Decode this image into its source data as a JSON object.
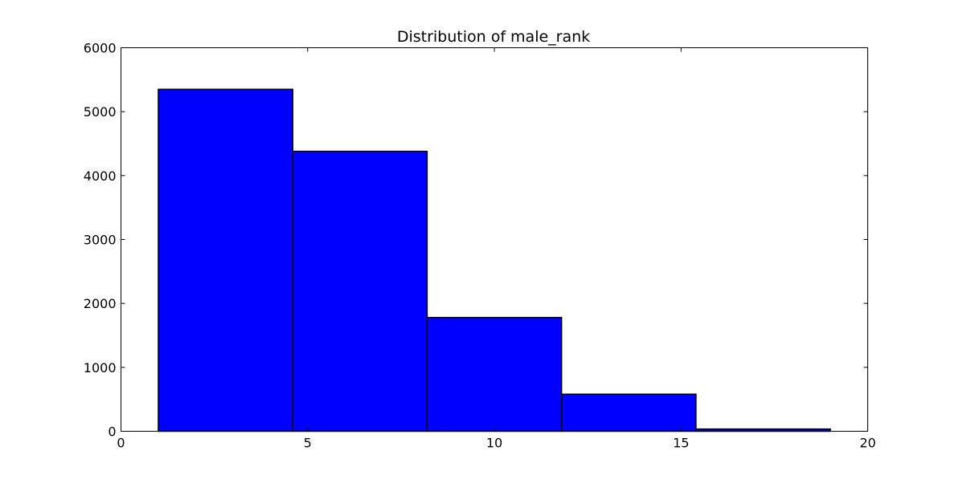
{
  "chart_data": {
    "type": "histogram",
    "title": "Distribution of male_rank",
    "xlabel": "",
    "ylabel": "",
    "xlim": [
      0,
      20
    ],
    "ylim": [
      0,
      6000
    ],
    "x_ticks": [
      0,
      5,
      10,
      15,
      20
    ],
    "y_ticks": [
      0,
      1000,
      2000,
      3000,
      4000,
      5000,
      6000
    ],
    "bins": [
      {
        "start": 1.0,
        "end": 4.6,
        "count": 5350
      },
      {
        "start": 4.6,
        "end": 8.2,
        "count": 4380
      },
      {
        "start": 8.2,
        "end": 11.8,
        "count": 1780
      },
      {
        "start": 11.8,
        "end": 15.4,
        "count": 580
      },
      {
        "start": 15.4,
        "end": 19.0,
        "count": 35
      }
    ],
    "bar_color": "#0000ff",
    "edge_color": "#000000",
    "grid": false,
    "legend": false
  }
}
